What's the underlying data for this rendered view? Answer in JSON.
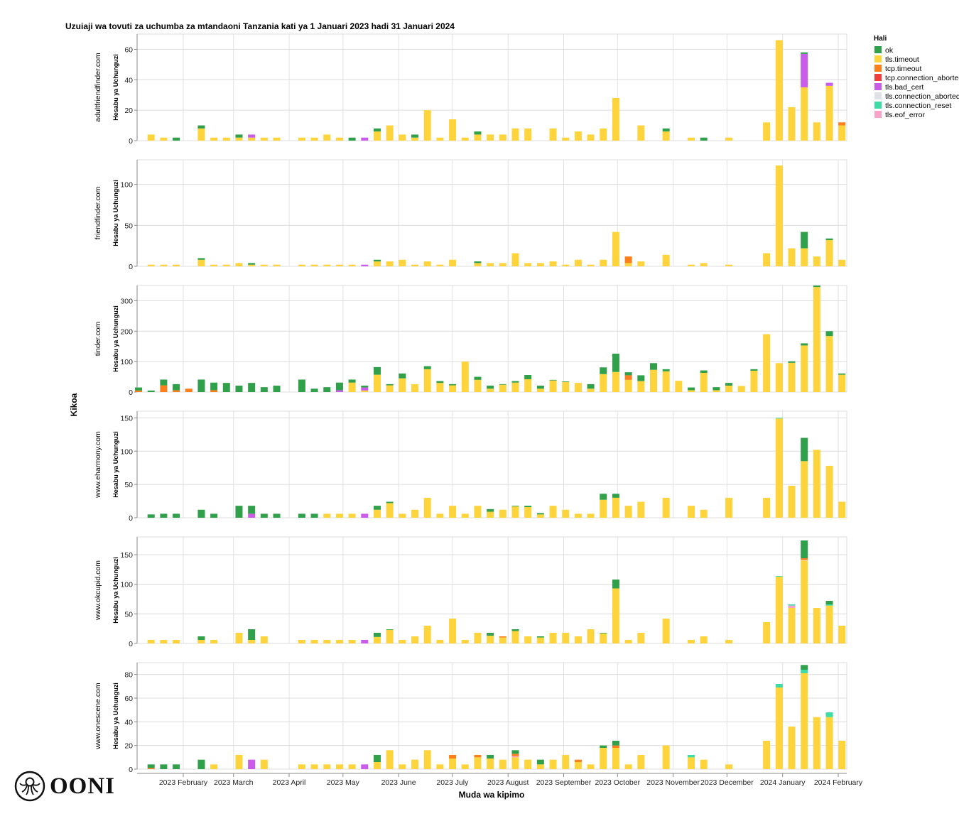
{
  "chart_data": {
    "type": "bar",
    "stacked": true,
    "title": "Uzuiaji wa tovuti za uchumba za mtandaoni Tanzania kati ya 1 Januari 2023 hadi 31 Januari 2024",
    "xlabel": "Muda wa kipimo",
    "ylabel": "Hesabu ya Uchunguzi",
    "facet_label": "Kikoa",
    "legend": {
      "title": "Hali",
      "placement": "right",
      "entries": [
        {
          "name": "ok",
          "color": "#31a04a"
        },
        {
          "name": "tls.timeout",
          "color": "#fdd43c"
        },
        {
          "name": "tcp.timeout",
          "color": "#fd7f1b"
        },
        {
          "name": "tcp.connection_aborted",
          "color": "#f23d3d"
        },
        {
          "name": "tls.bad_cert",
          "color": "#c95ce8"
        },
        {
          "name": "tls.connection_aborted",
          "color": "#dfe1e6"
        },
        {
          "name": "tls.connection_reset",
          "color": "#3ddba5"
        },
        {
          "name": "tls.eof_error",
          "color": "#f9a1c9"
        }
      ]
    },
    "grid": true,
    "x_ticks": [
      {
        "date": "2023-02-01",
        "label": "2023 February"
      },
      {
        "date": "2023-03-01",
        "label": "2023 March"
      },
      {
        "date": "2023-04-01",
        "label": "2023 April"
      },
      {
        "date": "2023-05-01",
        "label": "2023 May"
      },
      {
        "date": "2023-06-01",
        "label": "2023 June"
      },
      {
        "date": "2023-07-01",
        "label": "2023 July"
      },
      {
        "date": "2023-08-01",
        "label": "2023 August"
      },
      {
        "date": "2023-09-01",
        "label": "2023 September"
      },
      {
        "date": "2023-10-01",
        "label": "2023 October"
      },
      {
        "date": "2023-11-01",
        "label": "2023 November"
      },
      {
        "date": "2023-12-01",
        "label": "2023 December"
      },
      {
        "date": "2024-01-01",
        "label": "2024 January"
      },
      {
        "date": "2024-02-01",
        "label": "2024 February"
      }
    ],
    "x": [
      "2023-01-02",
      "2023-01-09",
      "2023-01-16",
      "2023-01-23",
      "2023-01-30",
      "2023-02-06",
      "2023-02-13",
      "2023-02-20",
      "2023-02-27",
      "2023-03-06",
      "2023-03-13",
      "2023-03-20",
      "2023-03-27",
      "2023-04-03",
      "2023-04-10",
      "2023-04-17",
      "2023-04-24",
      "2023-05-01",
      "2023-05-08",
      "2023-05-15",
      "2023-05-22",
      "2023-05-29",
      "2023-06-05",
      "2023-06-12",
      "2023-06-19",
      "2023-06-26",
      "2023-07-03",
      "2023-07-10",
      "2023-07-17",
      "2023-07-24",
      "2023-07-31",
      "2023-08-07",
      "2023-08-14",
      "2023-08-21",
      "2023-08-28",
      "2023-09-04",
      "2023-09-11",
      "2023-09-18",
      "2023-09-25",
      "2023-10-02",
      "2023-10-09",
      "2023-10-16",
      "2023-10-23",
      "2023-10-30",
      "2023-11-06",
      "2023-11-13",
      "2023-11-20",
      "2023-11-27",
      "2023-12-04",
      "2023-12-11",
      "2023-12-18",
      "2023-12-25",
      "2024-01-01",
      "2024-01-08",
      "2024-01-15",
      "2024-01-22",
      "2024-01-29"
    ],
    "facets": [
      {
        "domain": "adultfriendfinder.com",
        "ylim": [
          0,
          70
        ],
        "y_ticks": [
          0,
          20,
          40,
          60
        ],
        "series": {
          "tls.timeout": [
            0,
            4,
            2,
            0,
            0,
            8,
            2,
            2,
            2,
            2,
            2,
            2,
            0,
            2,
            2,
            4,
            2,
            0,
            0,
            6,
            10,
            4,
            2,
            20,
            2,
            14,
            2,
            4,
            4,
            4,
            8,
            8,
            0,
            8,
            2,
            6,
            4,
            8,
            28,
            0,
            10,
            0,
            6,
            0,
            2,
            0,
            0,
            2,
            0,
            0,
            12,
            66,
            22,
            35,
            12,
            36,
            10
          ],
          "ok": {
            "2023-01-23": 2,
            "2023-02-06": 2,
            "2023-02-27": 2,
            "2023-05-01": 2,
            "2023-05-15": 2,
            "2023-06-05": 2,
            "2023-07-10": 2,
            "2023-10-23": 2,
            "2023-11-13": 2,
            "2024-01-08": 1
          },
          "tls.bad_cert": {
            "2023-03-06": 2,
            "2023-05-08": 2,
            "2024-01-08": 22,
            "2024-01-22": 2
          },
          "tcp.timeout": {
            "2024-01-29": 2
          }
        }
      },
      {
        "domain": "friendfinder.com",
        "ylim": [
          0,
          130
        ],
        "y_ticks": [
          0,
          50,
          100
        ],
        "series": {
          "tls.timeout": [
            0,
            2,
            2,
            2,
            0,
            8,
            2,
            2,
            4,
            2,
            2,
            2,
            0,
            2,
            2,
            2,
            2,
            2,
            0,
            6,
            6,
            8,
            2,
            6,
            2,
            8,
            0,
            4,
            4,
            4,
            16,
            4,
            4,
            6,
            2,
            8,
            2,
            8,
            42,
            4,
            6,
            0,
            14,
            0,
            2,
            4,
            0,
            2,
            0,
            0,
            16,
            123,
            22,
            22,
            12,
            32,
            8
          ],
          "ok": {
            "2023-02-06": 2,
            "2023-03-06": 2,
            "2023-05-15": 2,
            "2023-07-10": 2,
            "2024-01-08": 20,
            "2024-01-22": 2
          },
          "tcp.timeout": {
            "2023-10-02": 8
          },
          "tls.bad_cert": {
            "2023-05-08": 2
          }
        }
      },
      {
        "domain": "tinder.com",
        "ylim": [
          0,
          350
        ],
        "y_ticks": [
          0,
          100,
          200,
          300
        ],
        "series": {
          "tls.timeout": [
            0,
            0,
            0,
            0,
            0,
            0,
            0,
            0,
            0,
            0,
            0,
            0,
            0,
            0,
            0,
            0,
            0,
            31,
            5,
            57,
            22,
            45,
            26,
            75,
            30,
            22,
            100,
            40,
            11,
            24,
            31,
            42,
            11,
            38,
            33,
            30,
            11,
            59,
            66,
            40,
            36,
            73,
            68,
            37,
            6,
            63,
            6,
            21,
            20,
            70,
            190,
            95,
            96,
            153,
            345,
            184,
            57
          ],
          "ok": [
            10,
            5,
            19,
            20,
            0,
            41,
            25,
            30,
            21,
            30,
            16,
            21,
            0,
            41,
            11,
            16,
            25,
            10,
            6,
            25,
            4,
            16,
            0,
            10,
            6,
            4,
            0,
            10,
            10,
            2,
            5,
            14,
            10,
            2,
            2,
            0,
            15,
            22,
            60,
            10,
            19,
            22,
            7,
            0,
            9,
            8,
            10,
            9,
            0,
            5,
            0,
            0,
            5,
            7,
            5,
            16,
            4
          ],
          "tcp.timeout": {
            "2023-01-02": 5,
            "2023-01-16": 22,
            "2023-01-23": 6,
            "2023-01-30": 11,
            "2023-02-13": 6,
            "2023-10-02": 15
          },
          "tls.bad_cert": {
            "2023-04-24": 6,
            "2023-05-08": 10
          }
        }
      },
      {
        "domain": "www.eharmony.com",
        "ylim": [
          0,
          160
        ],
        "y_ticks": [
          0,
          50,
          100,
          150
        ],
        "series": {
          "tls.timeout": [
            0,
            0,
            0,
            0,
            0,
            0,
            0,
            0,
            0,
            0,
            0,
            0,
            0,
            0,
            0,
            6,
            6,
            6,
            0,
            12,
            22,
            6,
            12,
            30,
            6,
            18,
            6,
            18,
            9,
            12,
            17,
            16,
            5,
            18,
            12,
            6,
            6,
            27,
            30,
            18,
            24,
            0,
            30,
            0,
            18,
            12,
            0,
            30,
            0,
            0,
            30,
            149,
            48,
            85,
            102,
            78,
            24
          ],
          "ok": [
            0,
            5,
            6,
            6,
            0,
            12,
            6,
            0,
            18,
            12,
            6,
            6,
            0,
            6,
            6,
            0,
            0,
            0,
            0,
            6,
            2,
            0,
            0,
            0,
            0,
            0,
            0,
            0,
            4,
            0,
            1,
            2,
            2,
            0,
            0,
            0,
            0,
            9,
            6,
            0,
            0,
            0,
            0,
            0,
            0,
            0,
            0,
            0,
            0,
            0,
            0,
            0,
            0,
            35,
            0,
            0,
            0
          ],
          "tls.bad_cert": {
            "2023-03-06": 6,
            "2023-05-08": 6
          },
          "tls.connection_reset": {
            "2023-12-25": 1
          }
        }
      },
      {
        "domain": "www.okcupid.com",
        "ylim": [
          0,
          180
        ],
        "y_ticks": [
          0,
          50,
          100,
          150
        ],
        "series": {
          "tls.timeout": [
            0,
            6,
            6,
            6,
            0,
            6,
            6,
            0,
            18,
            6,
            12,
            0,
            0,
            6,
            6,
            6,
            6,
            6,
            0,
            11,
            23,
            6,
            12,
            30,
            6,
            42,
            6,
            18,
            13,
            10,
            21,
            12,
            10,
            18,
            18,
            12,
            24,
            17,
            93,
            6,
            18,
            0,
            42,
            0,
            6,
            12,
            0,
            6,
            0,
            0,
            36,
            113,
            60,
            140,
            60,
            64,
            30
          ],
          "ok": {
            "2023-02-06": 6,
            "2023-03-06": 18,
            "2023-05-15": 7,
            "2023-05-22": 1,
            "2023-07-17": 5,
            "2023-07-31": 3,
            "2023-08-14": 2,
            "2023-09-18": 1,
            "2023-09-25": 15,
            "2024-01-08": 30,
            "2024-01-22": 6
          },
          "tls.bad_cert": {
            "2023-05-08": 6
          },
          "tcp.timeout": {
            "2023-07-24": 2,
            "2024-01-08": 3
          },
          "tls.connection_aborted": {
            "2024-01-08": 1
          },
          "tls.connection_reset": {
            "2023-12-25": 1,
            "2024-01-01": 2,
            "2024-01-22": 2
          },
          "tls.eof_error": {
            "2024-01-01": 4
          }
        }
      },
      {
        "domain": "www.onescene.com",
        "ylim": [
          0,
          90
        ],
        "y_ticks": [
          0,
          20,
          40,
          60,
          80
        ],
        "series": {
          "tls.timeout": [
            0,
            0,
            0,
            0,
            0,
            0,
            4,
            0,
            12,
            0,
            8,
            0,
            0,
            4,
            4,
            4,
            4,
            4,
            0,
            6,
            16,
            4,
            8,
            16,
            4,
            9,
            4,
            10,
            9,
            8,
            10,
            8,
            4,
            8,
            12,
            6,
            4,
            18,
            18,
            4,
            12,
            0,
            20,
            0,
            10,
            8,
            0,
            4,
            0,
            0,
            24,
            69,
            36,
            81,
            44,
            44,
            24
          ],
          "ok": {
            "2023-01-09": 3,
            "2023-01-16": 4,
            "2023-01-23": 4,
            "2023-02-06": 8,
            "2023-05-15": 6,
            "2023-07-17": 3,
            "2023-07-31": 3,
            "2023-08-14": 4,
            "2023-09-18": 2,
            "2023-09-25": 4,
            "2024-01-08": 4
          },
          "tcp.timeout": {
            "2023-01-09": 1,
            "2023-06-26": 3,
            "2023-07-10": 2,
            "2023-07-31": 2,
            "2023-09-04": 2,
            "2023-09-25": 2
          },
          "tls.bad_cert": {
            "2023-03-06": 8,
            "2023-05-08": 4
          },
          "tls.eof_error": {
            "2023-07-31": 1
          },
          "tls.connection_reset": {
            "2023-11-06": 2,
            "2023-12-25": 3,
            "2024-01-08": 3,
            "2024-01-22": 4
          }
        }
      }
    ]
  },
  "branding": {
    "logo_text": "OONI"
  }
}
